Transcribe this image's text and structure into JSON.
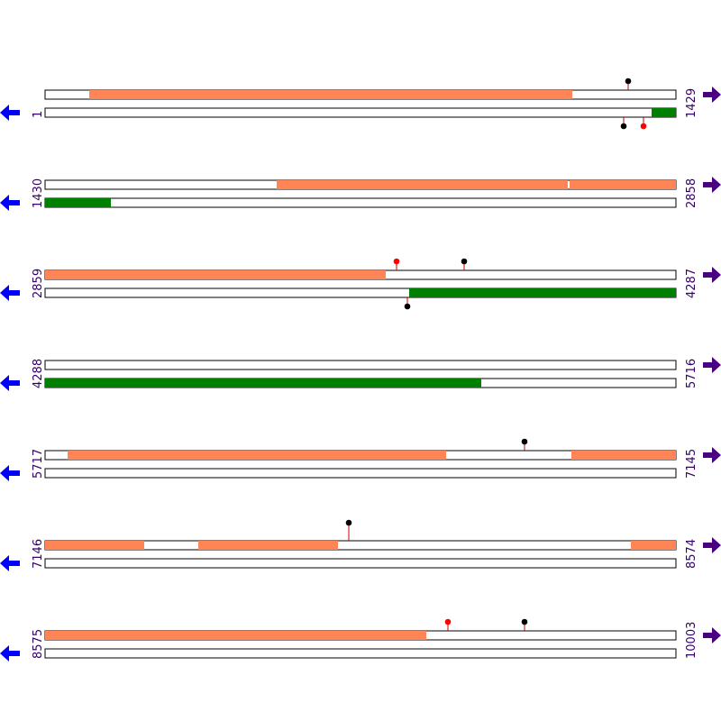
{
  "rows": [
    {
      "start": 1,
      "end": 1429
    },
    {
      "start": 1430,
      "end": 2858
    },
    {
      "start": 2859,
      "end": 4287
    },
    {
      "start": 4288,
      "end": 5716
    },
    {
      "start": 5717,
      "end": 7145
    },
    {
      "start": 7146,
      "end": 8574
    },
    {
      "start": 8575,
      "end": 10003
    }
  ]
}
